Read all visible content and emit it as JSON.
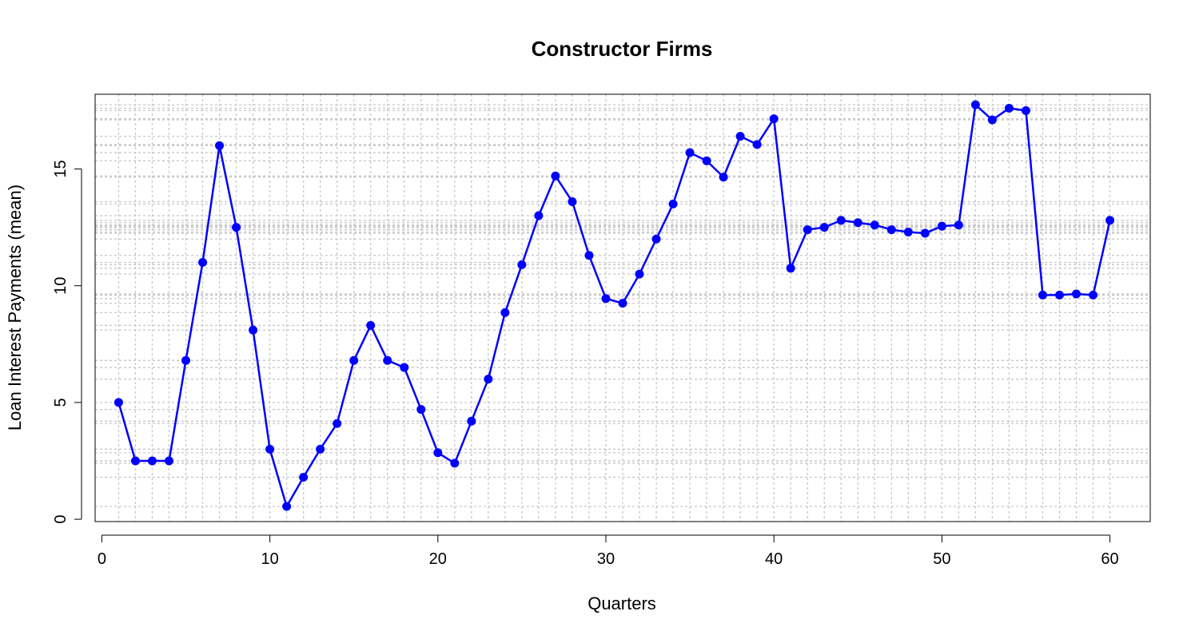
{
  "chart_data": {
    "type": "line",
    "title": "Constructor Firms",
    "xlabel": "Quarters",
    "ylabel": "Loan Interest Payments (mean)",
    "xlim": [
      -0.4,
      62.4
    ],
    "ylim": [
      -0.1,
      18.2
    ],
    "x_ticks": [
      0,
      10,
      20,
      30,
      40,
      50,
      60
    ],
    "y_ticks": [
      0,
      5,
      10,
      15
    ],
    "grid": true,
    "series": [
      {
        "color": "#0000ff",
        "marker": "circle",
        "x": [
          1,
          2,
          3,
          4,
          5,
          6,
          7,
          8,
          9,
          10,
          11,
          12,
          13,
          14,
          15,
          16,
          17,
          18,
          19,
          20,
          21,
          22,
          23,
          24,
          25,
          26,
          27,
          28,
          29,
          30,
          31,
          32,
          33,
          34,
          35,
          36,
          37,
          38,
          39,
          40,
          41,
          42,
          43,
          44,
          45,
          46,
          47,
          48,
          49,
          50,
          51,
          52,
          53,
          54,
          55,
          56,
          57,
          58,
          59,
          60
        ],
        "y": [
          5.0,
          2.5,
          2.5,
          2.5,
          6.8,
          11.0,
          16.0,
          12.5,
          8.1,
          3.0,
          0.55,
          1.8,
          3.0,
          4.1,
          6.8,
          8.3,
          6.8,
          6.5,
          4.7,
          2.85,
          2.4,
          4.2,
          6.0,
          8.85,
          10.9,
          13.0,
          14.7,
          13.6,
          11.3,
          9.45,
          9.25,
          10.5,
          12.0,
          13.5,
          15.7,
          15.35,
          14.65,
          16.4,
          16.05,
          17.15,
          10.75,
          12.4,
          12.5,
          12.8,
          12.7,
          12.6,
          12.4,
          12.3,
          12.25,
          12.55,
          12.6,
          17.75,
          17.1,
          17.6,
          17.5,
          9.6,
          9.6,
          9.65,
          9.6,
          12.8
        ]
      }
    ]
  }
}
